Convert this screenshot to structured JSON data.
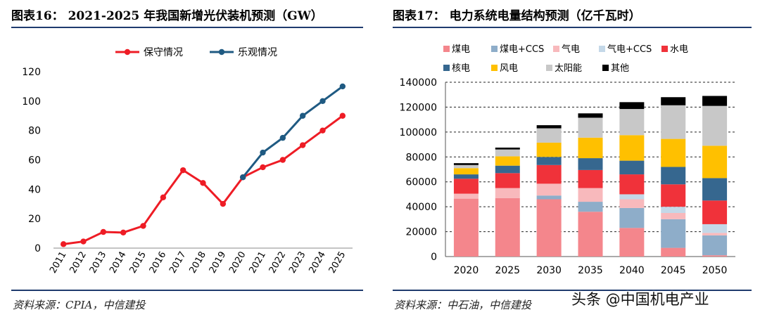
{
  "left": {
    "title": "图表16：  2021-2025 年我国新增光伏装机预测（GW）",
    "source": "资料来源：CPIA，中信建投"
  },
  "right": {
    "title": "图表17：  电力系统电量结构预测（亿千瓦时）",
    "source": "资料来源：中石油，中信建投"
  },
  "watermark": "头条 @中国机电产业",
  "chart_data": [
    {
      "type": "line",
      "title": "2021-2025 年我国新增光伏装机预测（GW）",
      "categories": [
        "2011",
        "2012",
        "2013",
        "2014",
        "2015",
        "2016",
        "2017",
        "2018",
        "2019",
        "2020",
        "2021",
        "2022",
        "2023",
        "2024",
        "2025"
      ],
      "ylim": [
        0,
        120
      ],
      "yticks": [
        0,
        20,
        40,
        60,
        80,
        100,
        120
      ],
      "legend_position": "top",
      "series": [
        {
          "name": "保守情况",
          "color": "#ee1c25",
          "values": [
            2.7,
            4.5,
            11,
            10.6,
            15.1,
            34.5,
            53,
            44.3,
            30.1,
            48.2,
            55,
            60,
            70,
            80,
            90
          ]
        },
        {
          "name": "乐观情况",
          "color": "#1f5a82",
          "values": [
            null,
            null,
            null,
            null,
            null,
            null,
            null,
            null,
            null,
            48.2,
            65,
            75,
            90,
            100,
            110
          ]
        }
      ]
    },
    {
      "type": "bar",
      "stacked": true,
      "title": "电力系统电量结构预测（亿千瓦时）",
      "categories": [
        "2020",
        "2025",
        "2030",
        "2035",
        "2040",
        "2045",
        "2050"
      ],
      "ylim": [
        0,
        140000
      ],
      "yticks": [
        0,
        20000,
        40000,
        60000,
        80000,
        100000,
        120000,
        140000
      ],
      "legend_position": "top",
      "series": [
        {
          "name": "煤电",
          "color": "#f4868c",
          "values": [
            46500,
            47000,
            46000,
            36000,
            23000,
            7000,
            1000
          ]
        },
        {
          "name": "煤电+CCS",
          "color": "#8eadc9",
          "values": [
            0,
            0,
            3000,
            8000,
            16000,
            23000,
            16000
          ]
        },
        {
          "name": "气电",
          "color": "#f8b9bc",
          "values": [
            4000,
            8000,
            9500,
            11000,
            7000,
            5000,
            2000
          ]
        },
        {
          "name": "气电+CCS",
          "color": "#c4d8e8",
          "values": [
            0,
            0,
            0,
            0,
            4000,
            5000,
            7000
          ]
        },
        {
          "name": "水电",
          "color": "#f0323a",
          "values": [
            12000,
            12000,
            15000,
            14500,
            16000,
            18000,
            19000
          ]
        },
        {
          "name": "核电",
          "color": "#36678f",
          "values": [
            3500,
            6000,
            6500,
            9500,
            11000,
            14000,
            18000
          ]
        },
        {
          "name": "风电",
          "color": "#ffc000",
          "values": [
            5000,
            7500,
            11500,
            16500,
            20500,
            22500,
            26000
          ]
        },
        {
          "name": "太阳能",
          "color": "#c8c8c8",
          "values": [
            2500,
            5500,
            11500,
            16000,
            21000,
            27000,
            32000
          ]
        },
        {
          "name": "其他",
          "color": "#000000",
          "values": [
            1500,
            1500,
            2500,
            3500,
            5500,
            6500,
            8000
          ]
        }
      ]
    }
  ]
}
